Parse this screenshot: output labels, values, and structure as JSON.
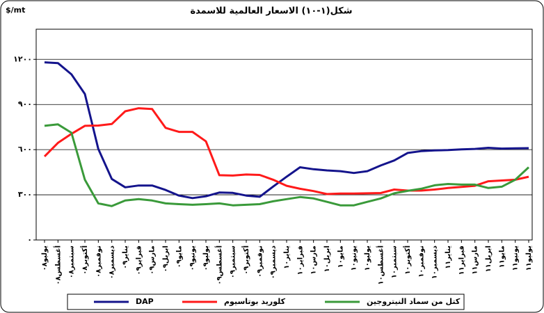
{
  "chart_data": {
    "type": "line",
    "title": "شكل(١-١٠) الاسعار العالمية للاسمدة",
    "y_label": "$/mt",
    "categories": [
      "يوليو٠٨",
      "أغسطس٠٨",
      "سبتمبر٠٨",
      "أكتوبر٠٨",
      "نوفمبر٠٨",
      "ديسمبر٠٨",
      "يناير٠٩",
      "فبراير٠٩",
      "مارس٠٩",
      "ابريل٠٩",
      "مايو٠٩",
      "يونيو٠٩",
      "يوليو٠٩",
      "أغسطس٠٩",
      "سبتمبر٠٩",
      "أكتوبر٠٩",
      "نوفمبر٠٩",
      "ديسمبر٠٩",
      "يناير١٠",
      "فبراير١٠",
      "مارس١٠",
      "ابريل١٠",
      "مايو١٠",
      "يونيو١٠",
      "يوليو١٠",
      "أغسطس١٠",
      "سبتمبر١٠",
      "أكتوبر١٠",
      "نوفمبر١٠",
      "ديسمبر١٠",
      "يناير١١",
      "فبراير١١",
      "مارس١١",
      "ابريل١١",
      "مايو١١",
      "يونيو١١",
      "يوليو١١"
    ],
    "series": [
      {
        "name": "DAP",
        "color": "#14148c",
        "values": [
          1180,
          1175,
          1100,
          970,
          605,
          405,
          350,
          362,
          362,
          332,
          295,
          278,
          290,
          315,
          313,
          295,
          287,
          355,
          420,
          483,
          470,
          462,
          457,
          445,
          457,
          495,
          528,
          578,
          590,
          595,
          597,
          602,
          605,
          612,
          607,
          609,
          610
        ]
      },
      {
        "name": "كلوريد بوتاسيوم",
        "color": "#ff1a1a",
        "values": [
          555,
          645,
          705,
          758,
          760,
          770,
          855,
          875,
          870,
          745,
          718,
          718,
          655,
          430,
          428,
          435,
          432,
          400,
          360,
          340,
          325,
          305,
          308,
          308,
          310,
          312,
          335,
          328,
          328,
          335,
          345,
          352,
          360,
          390,
          395,
          400,
          420
        ]
      },
      {
        "name": "كتل من سماد النيتروجين",
        "color": "#3a9a3a",
        "values": [
          758,
          768,
          712,
          400,
          243,
          225,
          262,
          271,
          262,
          243,
          238,
          234,
          238,
          243,
          230,
          234,
          238,
          257,
          271,
          285,
          276,
          253,
          230,
          230,
          253,
          276,
          310,
          326,
          340,
          363,
          372,
          368,
          368,
          345,
          354,
          400,
          483
        ]
      }
    ],
    "ylim": [
      0,
      1400
    ],
    "yticks": [
      {
        "value": 0,
        "label": "٠"
      },
      {
        "value": 300,
        "label": "٣٠٠"
      },
      {
        "value": 600,
        "label": "٦٠٠"
      },
      {
        "value": 900,
        "label": "٩٠٠"
      },
      {
        "value": 1200,
        "label": "١٢٠٠"
      }
    ],
    "grid": true,
    "legend": "bottom"
  }
}
